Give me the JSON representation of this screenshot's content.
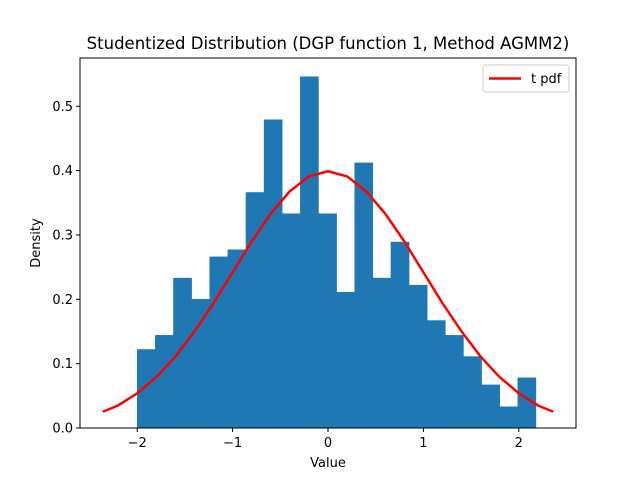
{
  "chart_data": {
    "type": "bar",
    "title": "Studentized Distribution (DGP function 1, Method AGMM2)",
    "xlabel": "Value",
    "ylabel": "Density",
    "xlim": [
      -2.6,
      2.6
    ],
    "ylim": [
      0,
      0.575
    ],
    "xticks": [
      -2,
      -1,
      0,
      1,
      2
    ],
    "xtick_labels": [
      "−2",
      "−1",
      "0",
      "1",
      "2"
    ],
    "yticks": [
      0.0,
      0.1,
      0.2,
      0.3,
      0.4,
      0.5
    ],
    "ytick_labels": [
      "0.0",
      "0.1",
      "0.2",
      "0.3",
      "0.4",
      "0.5"
    ],
    "grid": false,
    "legend": {
      "placement": "top-right",
      "entries": [
        "t pdf"
      ]
    },
    "histogram": {
      "name": "",
      "color": "#1f77b4",
      "bin_edges": [
        -2.0,
        -1.81,
        -1.62,
        -1.43,
        -1.24,
        -1.05,
        -0.86,
        -0.67,
        -0.48,
        -0.29,
        -0.1,
        0.09,
        0.28,
        0.47,
        0.66,
        0.85,
        1.04,
        1.23,
        1.42,
        1.61,
        1.8,
        1.99,
        2.18
      ],
      "densities": [
        0.122,
        0.144,
        0.233,
        0.2,
        0.266,
        0.277,
        0.366,
        0.479,
        0.333,
        0.546,
        0.333,
        0.211,
        0.412,
        0.233,
        0.289,
        0.222,
        0.167,
        0.144,
        0.111,
        0.067,
        0.033,
        0.078
      ]
    },
    "series": [
      {
        "name": "t pdf",
        "type": "line",
        "color": "#ff0000",
        "x": [
          -2.35,
          -2.2,
          -2.0,
          -1.8,
          -1.6,
          -1.4,
          -1.2,
          -1.0,
          -0.8,
          -0.6,
          -0.4,
          -0.2,
          0.0,
          0.2,
          0.4,
          0.6,
          0.8,
          1.0,
          1.2,
          1.4,
          1.6,
          1.8,
          2.0,
          2.2,
          2.35
        ],
        "y": [
          0.026,
          0.035,
          0.054,
          0.079,
          0.111,
          0.15,
          0.194,
          0.242,
          0.29,
          0.333,
          0.368,
          0.391,
          0.399,
          0.391,
          0.368,
          0.333,
          0.29,
          0.242,
          0.194,
          0.15,
          0.111,
          0.079,
          0.054,
          0.035,
          0.026
        ]
      }
    ]
  }
}
